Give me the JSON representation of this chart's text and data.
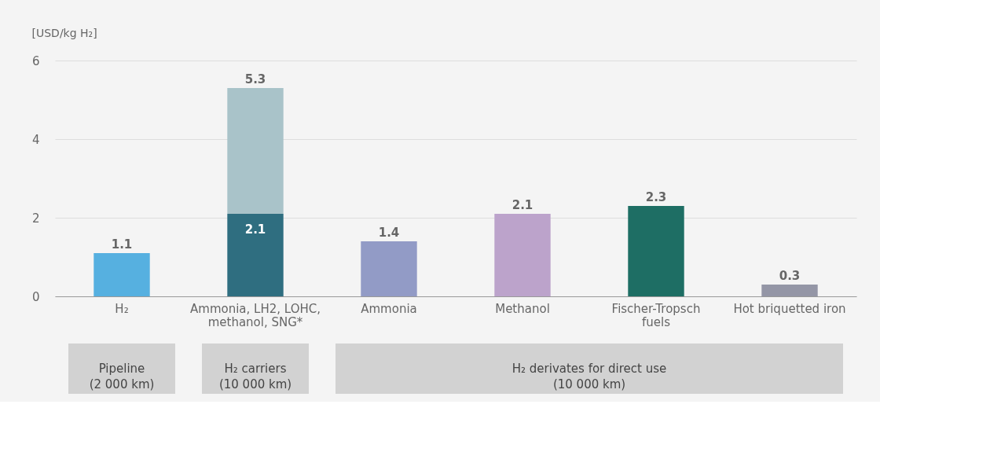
{
  "chart_data": {
    "type": "bar",
    "ylabel": "[USD/kg H₂]",
    "categories": [
      "H₂",
      "Ammonia, LH2, LOHC, methanol, SNG*",
      "Ammonia",
      "Methanol",
      "Fischer-Tropsch fuels",
      "Hot briquetted iron"
    ],
    "stacked": true,
    "series": [
      {
        "colors": [
          "#56b0e0",
          "#2f6e80",
          "#929bc6",
          "#bca3cb",
          "#1e6e64",
          "#9496a6"
        ],
        "values": [
          1.1,
          2.1,
          1.4,
          2.1,
          2.3,
          0.3
        ],
        "value_labels": [
          null,
          "2.1",
          null,
          null,
          null,
          null
        ]
      },
      {
        "color": "#a9c3c9",
        "values": [
          null,
          3.2,
          null,
          null,
          null,
          null
        ]
      }
    ],
    "totals": [
      "1.1",
      "5.3",
      "1.4",
      "2.1",
      "2.3",
      "0.3"
    ],
    "ylim": [
      0,
      6
    ],
    "yticks": [
      0,
      2,
      4,
      6
    ],
    "grid": "y",
    "legend": false,
    "annotations": [
      "Pipeline (2 000 km)",
      "H₂ carriers (10 000 km)",
      "H₂ derivates for direct use (10 000 km)"
    ]
  }
}
